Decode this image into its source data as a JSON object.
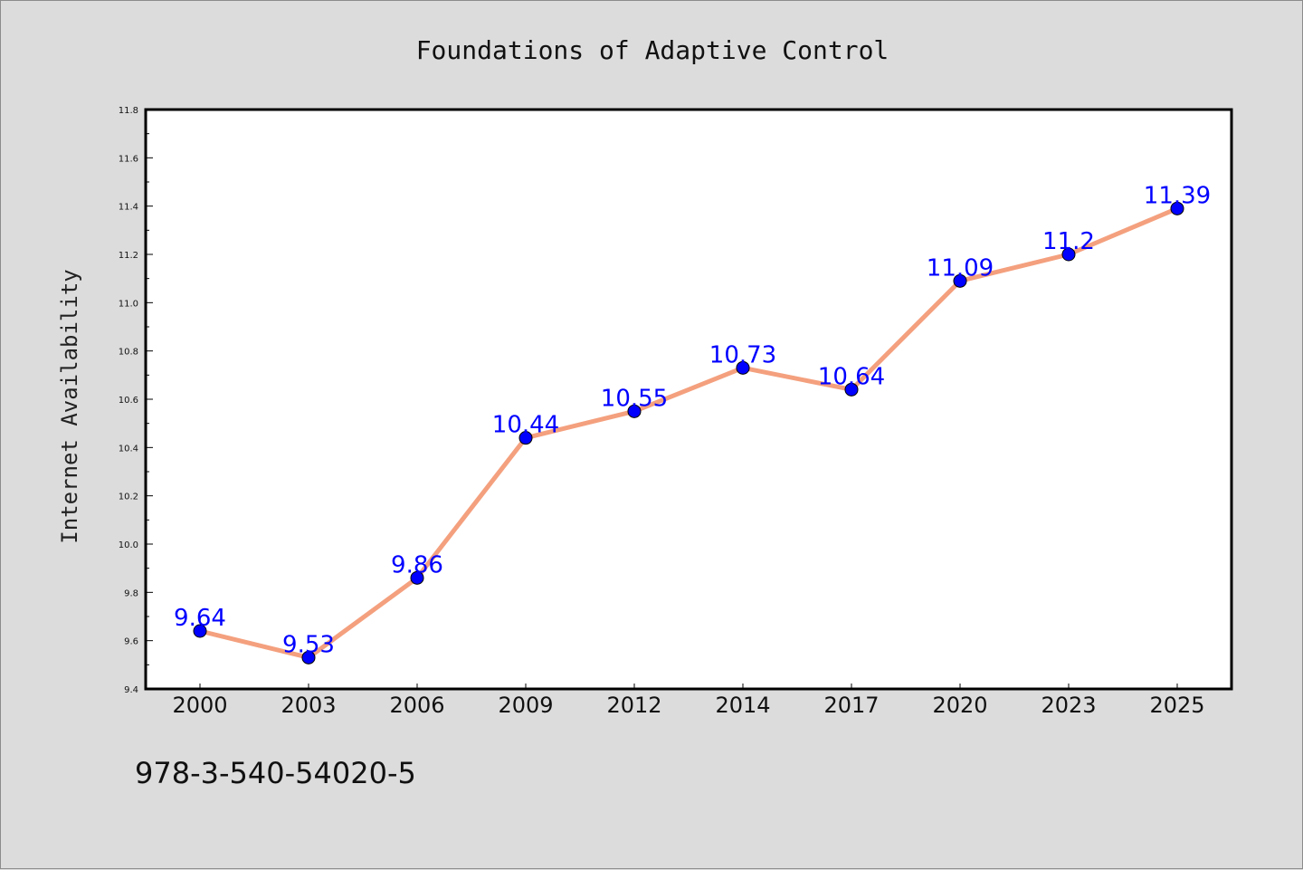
{
  "chart_data": {
    "type": "line",
    "title": "Foundations of Adaptive Control",
    "xlabel": "",
    "ylabel": "Internet Availability",
    "categories": [
      "2000",
      "2003",
      "2006",
      "2009",
      "2012",
      "2014",
      "2017",
      "2020",
      "2023",
      "2025"
    ],
    "series": [
      {
        "values": [
          9.64,
          9.53,
          9.86,
          10.44,
          10.55,
          10.73,
          10.64,
          11.09,
          11.2,
          11.39
        ],
        "labels": [
          "9.64",
          "9.53",
          "9.86",
          "10.44",
          "10.55",
          "10.73",
          "10.64",
          "11.09",
          "11.2",
          "11.39"
        ],
        "line_color": "#f4a07e",
        "marker_color": "#0000ff"
      }
    ],
    "ylim": [
      9.4,
      11.8
    ],
    "yticks": [
      "9.4",
      "9.6",
      "9.8",
      "10.0",
      "10.2",
      "10.4",
      "10.6",
      "10.8",
      "11.0",
      "11.2",
      "11.4",
      "11.6",
      "11.8"
    ],
    "grid": false,
    "legend": "none"
  },
  "footer": {
    "code": "978-3-540-54020-5"
  }
}
